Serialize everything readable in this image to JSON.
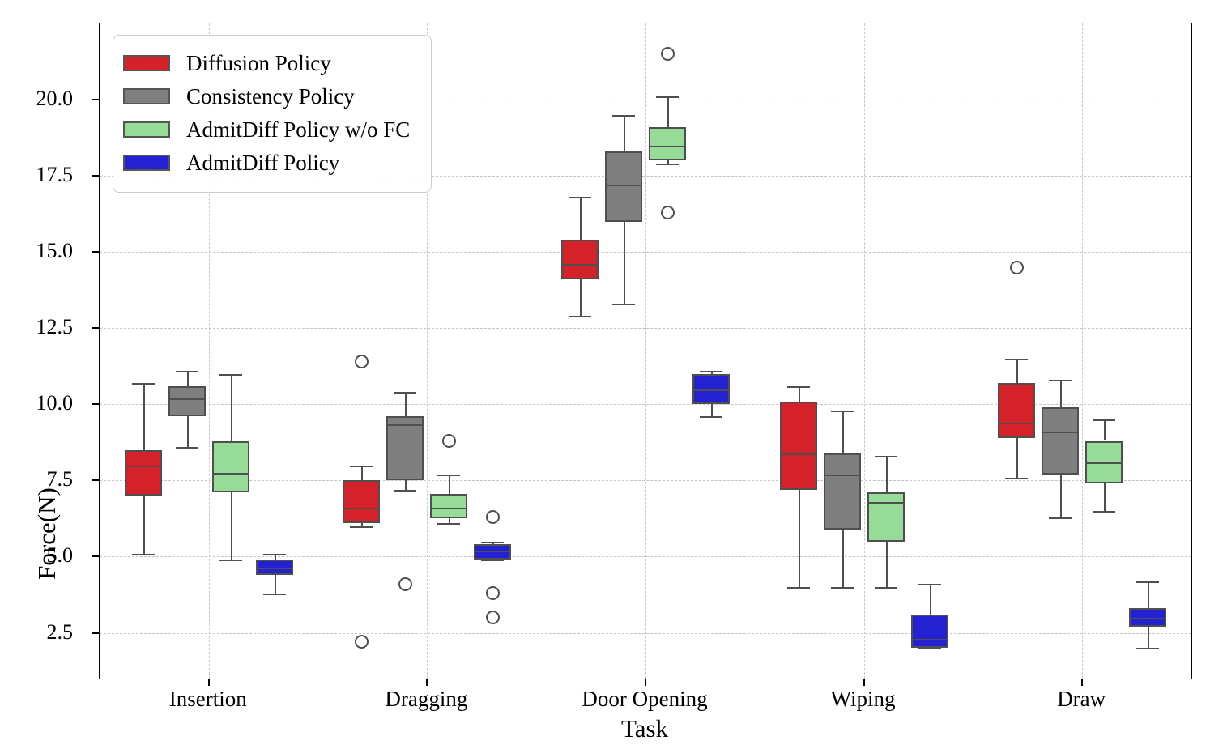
{
  "chart_data": {
    "type": "boxplot",
    "title": "",
    "xlabel": "Task",
    "ylabel": "Force(N)",
    "categories": [
      "Insertion",
      "Dragging",
      "Door Opening",
      "Wiping",
      "Draw"
    ],
    "yticks": [
      2.5,
      5.0,
      7.5,
      10.0,
      12.5,
      15.0,
      17.5,
      20.0
    ],
    "ytick_labels": [
      "2.5",
      "5.0",
      "7.5",
      "10.0",
      "12.5",
      "15.0",
      "17.5",
      "20.0"
    ],
    "ylim": [
      1.0,
      22.5
    ],
    "grid": "dashed, both axes",
    "legend_position": "upper left",
    "series": [
      {
        "name": "Diffusion Policy",
        "color": "#d5222a",
        "boxes": [
          {
            "whislo": 5.1,
            "q1": 7.0,
            "med": 8.0,
            "q3": 8.5,
            "whishi": 10.7,
            "fliers": []
          },
          {
            "whislo": 6.0,
            "q1": 6.1,
            "med": 6.6,
            "q3": 7.5,
            "whishi": 8.0,
            "fliers": [
              11.4,
              2.2
            ]
          },
          {
            "whislo": 12.9,
            "q1": 14.1,
            "med": 14.6,
            "q3": 15.4,
            "whishi": 16.8,
            "fliers": []
          },
          {
            "whislo": 4.0,
            "q1": 7.2,
            "med": 8.4,
            "q3": 10.1,
            "whishi": 10.6,
            "fliers": []
          },
          {
            "whislo": 7.6,
            "q1": 8.9,
            "med": 9.4,
            "q3": 10.7,
            "whishi": 11.5,
            "fliers": [
              14.5
            ]
          }
        ]
      },
      {
        "name": "Consistency Policy",
        "color": "#7f7f7f",
        "boxes": [
          {
            "whislo": 8.6,
            "q1": 9.6,
            "med": 10.2,
            "q3": 10.6,
            "whishi": 11.1,
            "fliers": []
          },
          {
            "whislo": 7.2,
            "q1": 7.5,
            "med": 9.35,
            "q3": 9.6,
            "whishi": 10.4,
            "fliers": [
              4.1
            ]
          },
          {
            "whislo": 13.3,
            "q1": 16.0,
            "med": 17.2,
            "q3": 18.3,
            "whishi": 19.5,
            "fliers": []
          },
          {
            "whislo": 4.0,
            "q1": 5.9,
            "med": 7.7,
            "q3": 8.4,
            "whishi": 9.8,
            "fliers": []
          },
          {
            "whislo": 6.3,
            "q1": 7.7,
            "med": 9.1,
            "q3": 9.9,
            "whishi": 10.8,
            "fliers": []
          }
        ]
      },
      {
        "name": "AdmitDiff Policy w/o FC",
        "color": "#97db99",
        "boxes": [
          {
            "whislo": 4.9,
            "q1": 7.1,
            "med": 7.75,
            "q3": 8.8,
            "whishi": 11.0,
            "fliers": []
          },
          {
            "whislo": 6.1,
            "q1": 6.25,
            "med": 6.6,
            "q3": 7.05,
            "whishi": 7.7,
            "fliers": [
              8.8
            ]
          },
          {
            "whislo": 17.9,
            "q1": 18.0,
            "med": 18.5,
            "q3": 19.1,
            "whishi": 20.1,
            "fliers": [
              21.5,
              16.3
            ]
          },
          {
            "whislo": 4.0,
            "q1": 5.5,
            "med": 6.8,
            "q3": 7.1,
            "whishi": 8.3,
            "fliers": []
          },
          {
            "whislo": 6.5,
            "q1": 7.4,
            "med": 8.1,
            "q3": 8.8,
            "whishi": 9.5,
            "fliers": []
          }
        ]
      },
      {
        "name": "AdmitDiff Policy",
        "color": "#2421d3",
        "boxes": [
          {
            "whislo": 3.8,
            "q1": 4.4,
            "med": 4.65,
            "q3": 4.9,
            "whishi": 5.1,
            "fliers": []
          },
          {
            "whislo": 4.9,
            "q1": 4.9,
            "med": 5.2,
            "q3": 5.4,
            "whishi": 5.5,
            "fliers": [
              6.3,
              3.8,
              3.0
            ]
          },
          {
            "whislo": 9.6,
            "q1": 10.0,
            "med": 10.5,
            "q3": 11.0,
            "whishi": 11.1,
            "fliers": []
          },
          {
            "whislo": 2.0,
            "q1": 2.0,
            "med": 2.3,
            "q3": 3.1,
            "whishi": 4.1,
            "fliers": []
          },
          {
            "whislo": 2.0,
            "q1": 2.7,
            "med": 3.0,
            "q3": 3.3,
            "whishi": 4.2,
            "fliers": []
          }
        ]
      }
    ]
  },
  "colors": {
    "box_edge": "#4f4f4f",
    "grid": "#c6c6c6",
    "axis": "#000000",
    "legend_border": "#cccccc",
    "background": "#ffffff"
  }
}
